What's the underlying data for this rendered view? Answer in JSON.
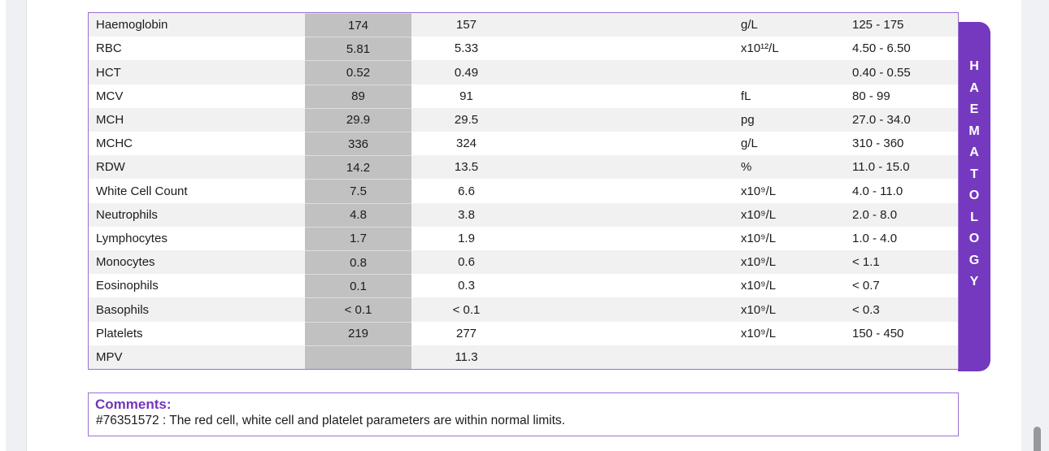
{
  "colors": {
    "accent_purple": "#7539c0",
    "border_purple": "#9a70d0",
    "comments_purple": "#7335bb",
    "row_shade": "#f1f1f2",
    "result_col_gray": "#c1c1c1",
    "gutter_gray": "#eef0f4",
    "scroll_thumb": "#98989c"
  },
  "side_tab": {
    "label": "HAEMATOLOGY",
    "letters": [
      "H",
      "A",
      "E",
      "M",
      "A",
      "T",
      "O",
      "L",
      "O",
      "G",
      "Y"
    ]
  },
  "table": {
    "rows": [
      {
        "test": "Haemoglobin",
        "result": "174",
        "result2": "157",
        "units": "g/L",
        "range": "125 - 175"
      },
      {
        "test": "RBC",
        "result": "5.81",
        "result2": "5.33",
        "units": "x10¹²/L",
        "range": "4.50 - 6.50"
      },
      {
        "test": "HCT",
        "result": "0.52",
        "result2": "0.49",
        "units": "",
        "range": "0.40 - 0.55"
      },
      {
        "test": "MCV",
        "result": "89",
        "result2": "91",
        "units": "fL",
        "range": "80 - 99"
      },
      {
        "test": "MCH",
        "result": "29.9",
        "result2": "29.5",
        "units": "pg",
        "range": "27.0 - 34.0"
      },
      {
        "test": "MCHC",
        "result": "336",
        "result2": "324",
        "units": "g/L",
        "range": "310 - 360"
      },
      {
        "test": "RDW",
        "result": "14.2",
        "result2": "13.5",
        "units": "%",
        "range": "11.0 - 15.0"
      },
      {
        "test": "White Cell Count",
        "result": "7.5",
        "result2": "6.6",
        "units": "x10⁹/L",
        "range": "4.0 - 11.0"
      },
      {
        "test": "Neutrophils",
        "result": "4.8",
        "result2": "3.8",
        "units": "x10⁹/L",
        "range": "2.0 - 8.0"
      },
      {
        "test": "Lymphocytes",
        "result": "1.7",
        "result2": "1.9",
        "units": "x10⁹/L",
        "range": "1.0 - 4.0"
      },
      {
        "test": "Monocytes",
        "result": "0.8",
        "result2": "0.6",
        "units": "x10⁹/L",
        "range": "< 1.1"
      },
      {
        "test": "Eosinophils",
        "result": "0.1",
        "result2": "0.3",
        "units": "x10⁹/L",
        "range": "< 0.7"
      },
      {
        "test": "Basophils",
        "result": "< 0.1",
        "result2": "< 0.1",
        "units": "x10⁹/L",
        "range": "< 0.3"
      },
      {
        "test": "Platelets",
        "result": "219",
        "result2": "277",
        "units": "x10⁹/L",
        "range": "150 - 450"
      },
      {
        "test": "MPV",
        "result": "",
        "result2": "11.3",
        "units": "",
        "range": ""
      }
    ]
  },
  "comments": {
    "heading": "Comments:",
    "text": "#76351572 : The red cell, white cell and platelet parameters are within normal limits."
  }
}
